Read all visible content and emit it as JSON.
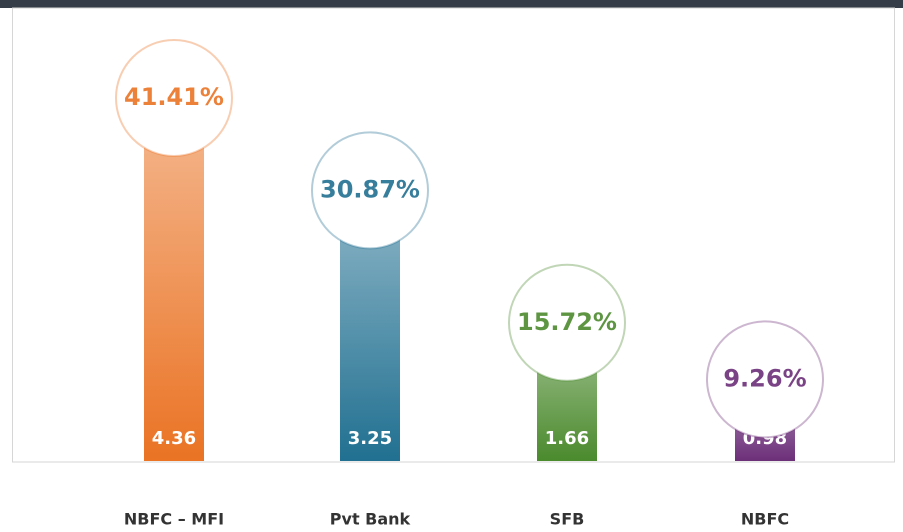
{
  "chart_data": {
    "type": "bar",
    "categories": [
      "NBFC – MFI",
      "Pvt Bank",
      "SFB",
      "NBFC"
    ],
    "values": [
      4.36,
      3.25,
      1.66,
      0.98
    ],
    "shares": [
      41.41,
      30.87,
      15.72,
      9.26
    ],
    "share_labels": [
      "41.41%",
      "30.87%",
      "15.72%",
      "9.26%"
    ],
    "colors": [
      "#ea7324",
      "#217091",
      "#4b8a2d",
      "#6c2f79"
    ]
  }
}
